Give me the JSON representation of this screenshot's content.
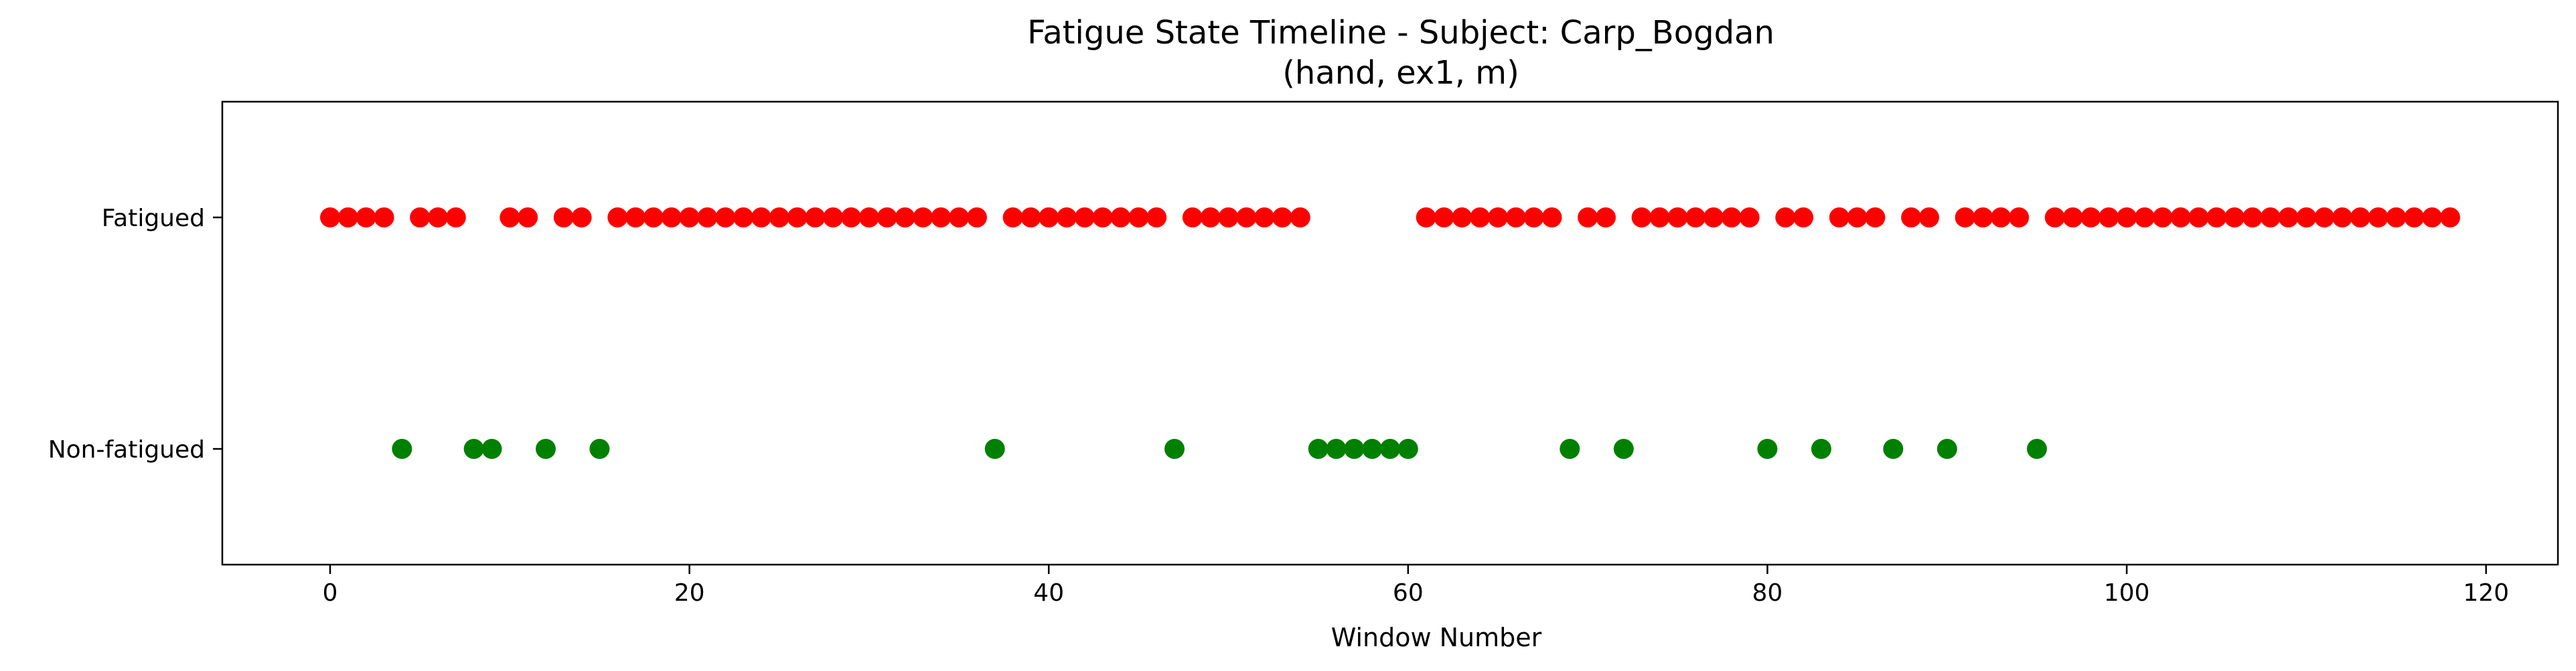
{
  "chart_data": {
    "type": "scatter",
    "title": "Fatigue State Timeline - Subject: Carp_Bogdan",
    "subtitle": "(hand, ex1, m)",
    "xlabel": "Window Number",
    "ylabel": "",
    "xlim": [
      -6,
      124
    ],
    "ylim": [
      -0.5,
      1.5
    ],
    "xticks": [
      0,
      20,
      40,
      60,
      80,
      100,
      120
    ],
    "yticks": [
      {
        "value": 0,
        "label": "Non-fatigued"
      },
      {
        "value": 1,
        "label": "Fatigued"
      }
    ],
    "grid": false,
    "series": [
      {
        "color": "#ff0000",
        "y": 1,
        "x": [
          0,
          1,
          2,
          3,
          5,
          6,
          7,
          10,
          11,
          13,
          14,
          16,
          17,
          18,
          19,
          20,
          21,
          22,
          23,
          24,
          25,
          26,
          27,
          28,
          29,
          30,
          31,
          32,
          33,
          34,
          35,
          36,
          38,
          39,
          40,
          41,
          42,
          43,
          44,
          45,
          46,
          48,
          49,
          50,
          51,
          52,
          53,
          54,
          61,
          62,
          63,
          64,
          65,
          66,
          67,
          68,
          70,
          71,
          73,
          74,
          75,
          76,
          77,
          78,
          79,
          81,
          82,
          84,
          85,
          86,
          88,
          89,
          91,
          92,
          93,
          94,
          96,
          97,
          98,
          99,
          100,
          101,
          102,
          103,
          104,
          105,
          106,
          107,
          108,
          109,
          110,
          111,
          112,
          113,
          114,
          115,
          116,
          117,
          118
        ]
      },
      {
        "color": "#008000",
        "y": 0,
        "x": [
          4,
          8,
          9,
          12,
          15,
          37,
          47,
          55,
          56,
          57,
          58,
          59,
          60,
          69,
          72,
          80,
          83,
          87,
          90,
          95
        ]
      }
    ]
  }
}
